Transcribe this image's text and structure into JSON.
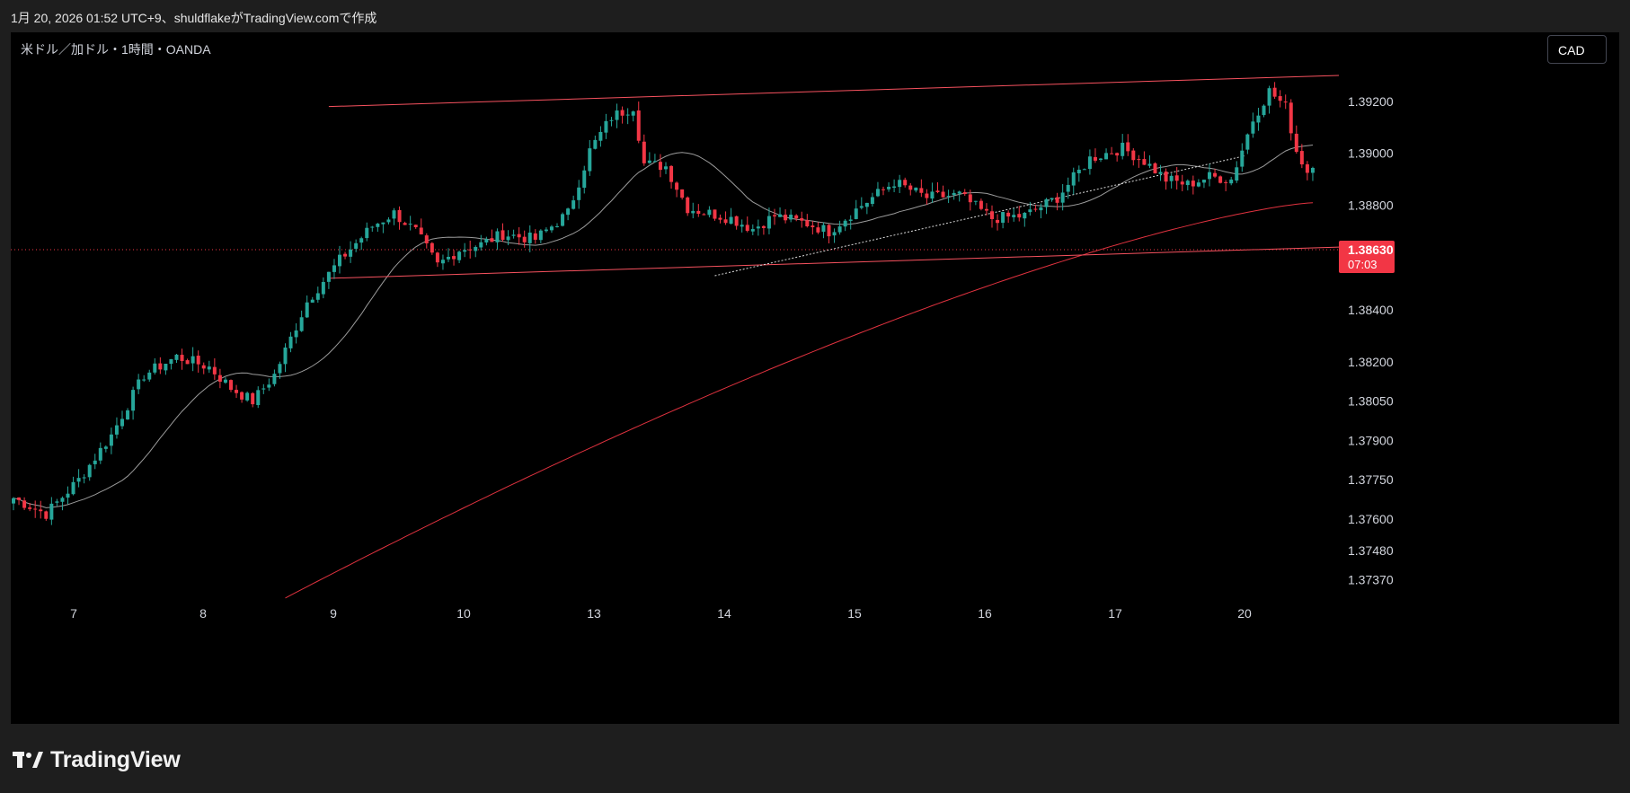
{
  "header": {
    "attribution": "1月 20, 2026 01:52 UTC+9、shuldflakeがTradingView.comで作成"
  },
  "chart": {
    "symbol_info": "米ドル／加ドル・1時間・OANDA",
    "currency_button": "CAD"
  },
  "price_tag": {
    "price": "1.38630",
    "countdown": "07:03"
  },
  "footer": {
    "logo_text": "TradingView"
  },
  "colors": {
    "background": "#000000",
    "up": "#26a69a",
    "down": "#f23645",
    "trendline": "#f7525f",
    "ma_long": "#e0323f",
    "ma_short": "#9b9b9b"
  },
  "chart_data": {
    "type": "candlestick",
    "title": "米ドル／加ドル・1時間・OANDA",
    "x_tick_labels": [
      "7",
      "8",
      "9",
      "10",
      "13",
      "14",
      "15",
      "16",
      "17",
      "20"
    ],
    "y_tick_labels": [
      "1.39200",
      "1.39000",
      "1.38800",
      "1.38630",
      "1.38400",
      "1.38200",
      "1.38050",
      "1.37900",
      "1.37750",
      "1.37600",
      "1.37480",
      "1.37370"
    ],
    "y_axis_scale": "log",
    "y_range": [
      1.3732,
      1.393
    ],
    "last_price": 1.3863,
    "candles_count": 240,
    "anchor_closes": [
      [
        0,
        1.3768
      ],
      [
        6,
        1.3762
      ],
      [
        12,
        1.3775
      ],
      [
        18,
        1.3792
      ],
      [
        24,
        1.3815
      ],
      [
        30,
        1.3822
      ],
      [
        36,
        1.3818
      ],
      [
        40,
        1.381
      ],
      [
        44,
        1.3805
      ],
      [
        48,
        1.3815
      ],
      [
        54,
        1.3843
      ],
      [
        60,
        1.3859
      ],
      [
        66,
        1.3872
      ],
      [
        70,
        1.3877
      ],
      [
        74,
        1.387
      ],
      [
        78,
        1.3857
      ],
      [
        82,
        1.3863
      ],
      [
        86,
        1.3865
      ],
      [
        90,
        1.3869
      ],
      [
        96,
        1.3867
      ],
      [
        102,
        1.3877
      ],
      [
        106,
        1.3901
      ],
      [
        110,
        1.3914
      ],
      [
        114,
        1.3918
      ],
      [
        116,
        1.3896
      ],
      [
        120,
        1.3895
      ],
      [
        124,
        1.3879
      ],
      [
        128,
        1.3877
      ],
      [
        132,
        1.3875
      ],
      [
        136,
        1.3871
      ],
      [
        140,
        1.3876
      ],
      [
        146,
        1.3873
      ],
      [
        150,
        1.387
      ],
      [
        156,
        1.388
      ],
      [
        162,
        1.3889
      ],
      [
        168,
        1.3883
      ],
      [
        174,
        1.3884
      ],
      [
        180,
        1.3875
      ],
      [
        186,
        1.3876
      ],
      [
        192,
        1.3883
      ],
      [
        198,
        1.3898
      ],
      [
        204,
        1.3902
      ],
      [
        208,
        1.3897
      ],
      [
        212,
        1.389
      ],
      [
        216,
        1.3888
      ],
      [
        220,
        1.3891
      ],
      [
        224,
        1.389
      ],
      [
        228,
        1.3913
      ],
      [
        231,
        1.3924
      ],
      [
        234,
        1.3918
      ],
      [
        236,
        1.3901
      ],
      [
        238,
        1.3893
      ],
      [
        240,
        1.39
      ],
      [
        244,
        1.3896
      ],
      [
        248,
        1.3889
      ],
      [
        250,
        1.3881
      ],
      [
        252,
        1.3868
      ],
      [
        254,
        1.3863
      ]
    ],
    "channel_upper": [
      [
        1.3918,
        1.393
      ]
    ],
    "channel_lower": [
      [
        1.3852,
        1.3864
      ]
    ],
    "ma_long_range": [
      1.373,
      1.3881
    ],
    "grid": false,
    "legend": "none"
  }
}
